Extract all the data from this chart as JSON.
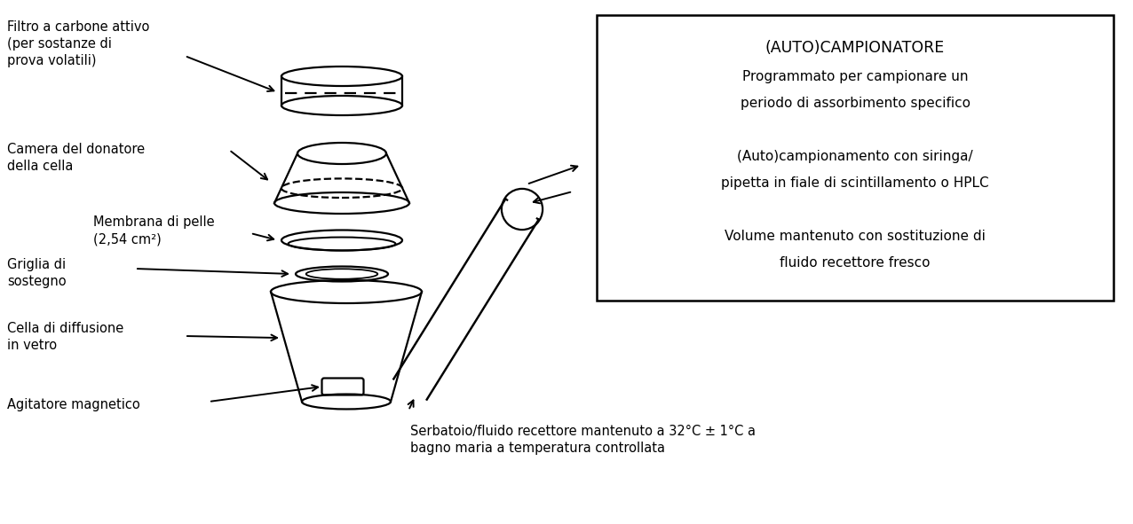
{
  "bg_color": "#ffffff",
  "line_color": "#000000",
  "labels": {
    "filtro": "Filtro a carbone attivo\n(per sostanze di\nprova volatili)",
    "camera": "Camera del donatore\ndella cella",
    "membrana": "Membrana di pelle\n(2,54 cm²)",
    "griglia": "Griglia di\nsostegno",
    "cella": "Cella di diffusione\nin vetro",
    "agitatore": "Agitatore magnetico",
    "serbatoio": "Serbatoio/fluido recettore mantenuto a 32°C ± 1°C a\nbagno maria a temperatura controllata",
    "box_title": "(AUTO)CAMPIONATORE",
    "box_line1": "Programmato per campionare un",
    "box_line2": "periodo di assorbimento specifico",
    "box_line3": "(Auto)campionamento con siringa/",
    "box_line4": "pipetta in fiale di scintillamento o HPLC",
    "box_line5": "Volume mantenuto con sostituzione di",
    "box_line6": "fluido recettore fresco"
  },
  "figsize": [
    12.76,
    5.91
  ],
  "dpi": 100
}
